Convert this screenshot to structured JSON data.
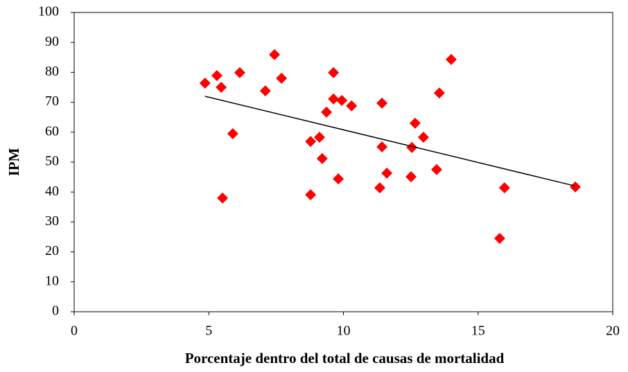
{
  "chart_data": {
    "type": "scatter",
    "x_label": "Porcentaje dentro del total de causas de mortalidad",
    "y_label": "IPM",
    "color": "#ff0000",
    "x": [
      4.86,
      5.3,
      5.46,
      5.51,
      5.89,
      6.15,
      7.1,
      7.44,
      7.7,
      8.78,
      8.78,
      9.11,
      9.21,
      9.37,
      9.63,
      9.63,
      9.94,
      9.81,
      10.3,
      11.43,
      11.43,
      11.35,
      11.61,
      12.54,
      12.66,
      12.51,
      12.97,
      13.46,
      13.56,
      14.0,
      15.8,
      15.98,
      18.61
    ],
    "values": [
      76.4,
      78.9,
      75.0,
      38.0,
      59.5,
      79.9,
      73.8,
      85.9,
      78.0,
      56.9,
      39.1,
      58.3,
      51.2,
      66.7,
      79.9,
      71.1,
      70.6,
      44.4,
      68.8,
      69.7,
      55.1,
      41.4,
      46.3,
      54.9,
      63.0,
      45.1,
      58.3,
      47.5,
      73.1,
      84.3,
      24.5,
      41.4,
      41.7
    ],
    "trendline": {
      "color": "#000000",
      "x": [
        4.86,
        18.61
      ],
      "values": [
        72.0,
        42.0
      ]
    },
    "xlim": [
      0,
      20
    ],
    "xticks": [
      0,
      5,
      10,
      15,
      20
    ],
    "ylim": [
      0,
      100
    ],
    "yticks": [
      0,
      10,
      20,
      30,
      40,
      50,
      60,
      70,
      80,
      90,
      100
    ],
    "grid": false
  }
}
